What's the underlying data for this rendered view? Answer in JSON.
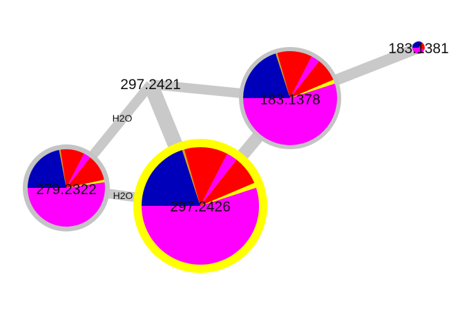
{
  "colors": {
    "edge": "#c9c9c9",
    "ring_default": "#c4c4c4",
    "ring_selected": "#ffff00",
    "segment": {
      "blue": "#0000bb",
      "red": "#ff0000",
      "magenta": "#ff00ff",
      "yellow": "#ffff00",
      "orange": "#d4a020"
    }
  },
  "nodes": [
    {
      "id": "n297_2421",
      "label": "297.2421",
      "pie": []
    },
    {
      "id": "n183_1378",
      "label": "183.1378",
      "ring": "default",
      "pie": [
        {
          "color": "blue",
          "fraction": 0.2
        },
        {
          "color": "orange",
          "fraction": 0.006
        },
        {
          "color": "red",
          "fraction": 0.12
        },
        {
          "color": "magenta",
          "fraction": 0.03
        },
        {
          "color": "red",
          "fraction": 0.08
        },
        {
          "color": "yellow",
          "fraction": 0.014
        },
        {
          "color": "magenta",
          "fraction": 0.55
        }
      ]
    },
    {
      "id": "n183_1381",
      "label": "183.1381",
      "ring": "none",
      "pie": [
        {
          "color": "blue",
          "fraction": 0.35
        },
        {
          "color": "red",
          "fraction": 0.2
        },
        {
          "color": "magenta",
          "fraction": 0.45
        }
      ]
    },
    {
      "id": "n279_2322",
      "label": "279.2322",
      "ring": "default",
      "pie": [
        {
          "color": "blue",
          "fraction": 0.22
        },
        {
          "color": "orange",
          "fraction": 0.006
        },
        {
          "color": "red",
          "fraction": 0.1
        },
        {
          "color": "magenta",
          "fraction": 0.03
        },
        {
          "color": "red",
          "fraction": 0.11
        },
        {
          "color": "yellow",
          "fraction": 0.01
        },
        {
          "color": "magenta",
          "fraction": 0.524
        }
      ]
    },
    {
      "id": "n297_2426",
      "label": "297.2426",
      "ring": "selected",
      "pie": [
        {
          "color": "blue",
          "fraction": 0.2
        },
        {
          "color": "orange",
          "fraction": 0.006
        },
        {
          "color": "red",
          "fraction": 0.12
        },
        {
          "color": "magenta",
          "fraction": 0.03
        },
        {
          "color": "red",
          "fraction": 0.08
        },
        {
          "color": "yellow",
          "fraction": 0.014
        },
        {
          "color": "magenta",
          "fraction": 0.55
        }
      ]
    }
  ],
  "edges": [
    {
      "from": "n297_2421",
      "to": "n183_1378",
      "label": ""
    },
    {
      "from": "n297_2421",
      "to": "n279_2322",
      "label": "H2O"
    },
    {
      "from": "n297_2421",
      "to": "n297_2426",
      "label": ""
    },
    {
      "from": "n183_1378",
      "to": "n183_1381",
      "label": ""
    },
    {
      "from": "n183_1378",
      "to": "n297_2426",
      "label": ""
    },
    {
      "from": "n279_2322",
      "to": "n297_2426",
      "label": "H2O"
    }
  ]
}
